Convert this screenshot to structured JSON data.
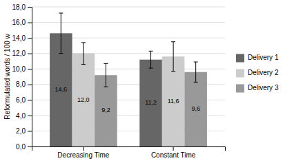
{
  "chart_data": {
    "type": "bar",
    "categories": [
      "Decreasing Time",
      "Constant Time"
    ],
    "series": [
      {
        "name": "Delivery 1",
        "color": "#666666",
        "values": [
          14.6,
          11.2
        ],
        "errors": [
          2.6,
          1.1
        ],
        "value_labels": [
          "14,6",
          "11,2"
        ]
      },
      {
        "name": "Delivery 2",
        "color": "#cccccc",
        "values": [
          12.0,
          11.6
        ],
        "errors": [
          1.4,
          1.9
        ],
        "value_labels": [
          "12,0",
          "11,6"
        ]
      },
      {
        "name": "Delivery 3",
        "color": "#999999",
        "values": [
          9.2,
          9.6
        ],
        "errors": [
          1.5,
          1.3
        ],
        "value_labels": [
          "9,2",
          "9,6"
        ]
      }
    ],
    "ylabel": "Reformulated words / 100 w",
    "ylim": [
      0,
      18
    ],
    "yticks": [
      {
        "value": 0.0,
        "label": "0,0"
      },
      {
        "value": 2.0,
        "label": "2,0"
      },
      {
        "value": 4.0,
        "label": "4,0"
      },
      {
        "value": 6.0,
        "label": "6,0"
      },
      {
        "value": 8.0,
        "label": "8,0"
      },
      {
        "value": 10.0,
        "label": "10,0"
      },
      {
        "value": 12.0,
        "label": "12,0"
      },
      {
        "value": 14.0,
        "label": "14,0"
      },
      {
        "value": 16.0,
        "label": "16,0"
      },
      {
        "value": 18.0,
        "label": "18,0"
      }
    ],
    "grid": true,
    "legend": "right",
    "data_labels": true
  }
}
